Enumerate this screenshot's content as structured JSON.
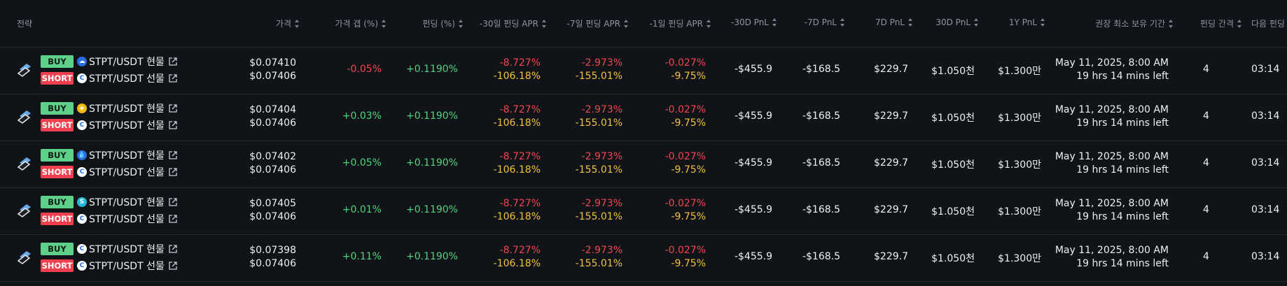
{
  "colors": {
    "accent_positive": "#4fd47b",
    "accent_negative": "#f0464f",
    "accent_yellow": "#f2c13d",
    "buy_badge": "#5fd08a",
    "short_badge": "#f0404f"
  },
  "headers": {
    "strategy": "전략",
    "price": "가격",
    "price_gap": "가격 갭 (%)",
    "funding": "펀딩 (%)",
    "apr30": "-30일 펀딩 APR",
    "apr7": "-7일 펀딩 APR",
    "apr1": "-1일 펀딩 APR",
    "pnl30m": "-30D PnL",
    "pnl7m": "-7D PnL",
    "pnl7": "7D PnL",
    "pnl30": "30D PnL",
    "pnl1y": "1Y PnL",
    "hold": "권장 최소 보유 기간",
    "interval": "펀딩 간격",
    "next": "다음 펀딩"
  },
  "rows": [
    {
      "buy_label": "BUY",
      "short_label": "SHORT",
      "spot_pair": "STPT/USDT 현물",
      "fut_pair": "STPT/USDT 선물",
      "spot_icon": "cloud-exchange-icon",
      "fut_icon": "c-exchange-icon",
      "spot_price": "$0.07410",
      "fut_price": "$0.07406",
      "gap": "-0.05%",
      "gap_sign": "neg",
      "funding": "+0.1190%",
      "apr30_a": "-8.727%",
      "apr30_b": "-106.18%",
      "apr7_a": "-2.973%",
      "apr7_b": "-155.01%",
      "apr1_a": "-0.027%",
      "apr1_b": "-9.75%",
      "pnl30m": "-$455.9",
      "pnl7m": "-$168.5",
      "pnl7": "$229.7",
      "pnl30": "$1.050천",
      "pnl1y": "$1.300만",
      "hold_date": "May 11, 2025, 8:00 AM",
      "hold_left": "19 hrs 14 mins left",
      "interval": "4",
      "next": "03:14"
    },
    {
      "buy_label": "BUY",
      "short_label": "SHORT",
      "spot_pair": "STPT/USDT 현물",
      "fut_pair": "STPT/USDT 선물",
      "spot_icon": "yellow-coin-exchange-icon",
      "fut_icon": "c-exchange-icon",
      "spot_price": "$0.07404",
      "fut_price": "$0.07406",
      "gap": "+0.03%",
      "gap_sign": "pos",
      "funding": "+0.1190%",
      "apr30_a": "-8.727%",
      "apr30_b": "-106.18%",
      "apr7_a": "-2.973%",
      "apr7_b": "-155.01%",
      "apr1_a": "-0.027%",
      "apr1_b": "-9.75%",
      "pnl30m": "-$455.9",
      "pnl7m": "-$168.5",
      "pnl7": "$229.7",
      "pnl30": "$1.050천",
      "pnl1y": "$1.300만",
      "hold_date": "May 11, 2025, 8:00 AM",
      "hold_left": "19 hrs 14 mins left",
      "interval": "4",
      "next": "03:14"
    },
    {
      "buy_label": "BUY",
      "short_label": "SHORT",
      "spot_pair": "STPT/USDT 현물",
      "fut_pair": "STPT/USDT 선물",
      "spot_icon": "drop-exchange-icon",
      "fut_icon": "c-exchange-icon",
      "spot_price": "$0.07402",
      "fut_price": "$0.07406",
      "gap": "+0.05%",
      "gap_sign": "pos",
      "funding": "+0.1190%",
      "apr30_a": "-8.727%",
      "apr30_b": "-106.18%",
      "apr7_a": "-2.973%",
      "apr7_b": "-155.01%",
      "apr1_a": "-0.027%",
      "apr1_b": "-9.75%",
      "pnl30m": "-$455.9",
      "pnl7m": "-$168.5",
      "pnl7": "$229.7",
      "pnl30": "$1.050천",
      "pnl1y": "$1.300만",
      "hold_date": "May 11, 2025, 8:00 AM",
      "hold_left": "19 hrs 14 mins left",
      "interval": "4",
      "next": "03:14"
    },
    {
      "buy_label": "BUY",
      "short_label": "SHORT",
      "spot_pair": "STPT/USDT 현물",
      "fut_pair": "STPT/USDT 선물",
      "spot_icon": "s-exchange-icon",
      "fut_icon": "c-exchange-icon",
      "spot_price": "$0.07405",
      "fut_price": "$0.07406",
      "gap": "+0.01%",
      "gap_sign": "pos",
      "funding": "+0.1190%",
      "apr30_a": "-8.727%",
      "apr30_b": "-106.18%",
      "apr7_a": "-2.973%",
      "apr7_b": "-155.01%",
      "apr1_a": "-0.027%",
      "apr1_b": "-9.75%",
      "pnl30m": "-$455.9",
      "pnl7m": "-$168.5",
      "pnl7": "$229.7",
      "pnl30": "$1.050천",
      "pnl1y": "$1.300만",
      "hold_date": "May 11, 2025, 8:00 AM",
      "hold_left": "19 hrs 14 mins left",
      "interval": "4",
      "next": "03:14"
    },
    {
      "buy_label": "BUY",
      "short_label": "SHORT",
      "spot_pair": "STPT/USDT 현물",
      "fut_pair": "STPT/USDT 선물",
      "spot_icon": "c-exchange-icon",
      "fut_icon": "c-exchange-icon",
      "spot_price": "$0.07398",
      "fut_price": "$0.07406",
      "gap": "+0.11%",
      "gap_sign": "pos",
      "funding": "+0.1190%",
      "apr30_a": "-8.727%",
      "apr30_b": "-106.18%",
      "apr7_a": "-2.973%",
      "apr7_b": "-155.01%",
      "apr1_a": "-0.027%",
      "apr1_b": "-9.75%",
      "pnl30m": "-$455.9",
      "pnl7m": "-$168.5",
      "pnl7": "$229.7",
      "pnl30": "$1.050천",
      "pnl1y": "$1.300만",
      "hold_date": "May 11, 2025, 8:00 AM",
      "hold_left": "19 hrs 14 mins left",
      "interval": "4",
      "next": "03:14"
    }
  ]
}
